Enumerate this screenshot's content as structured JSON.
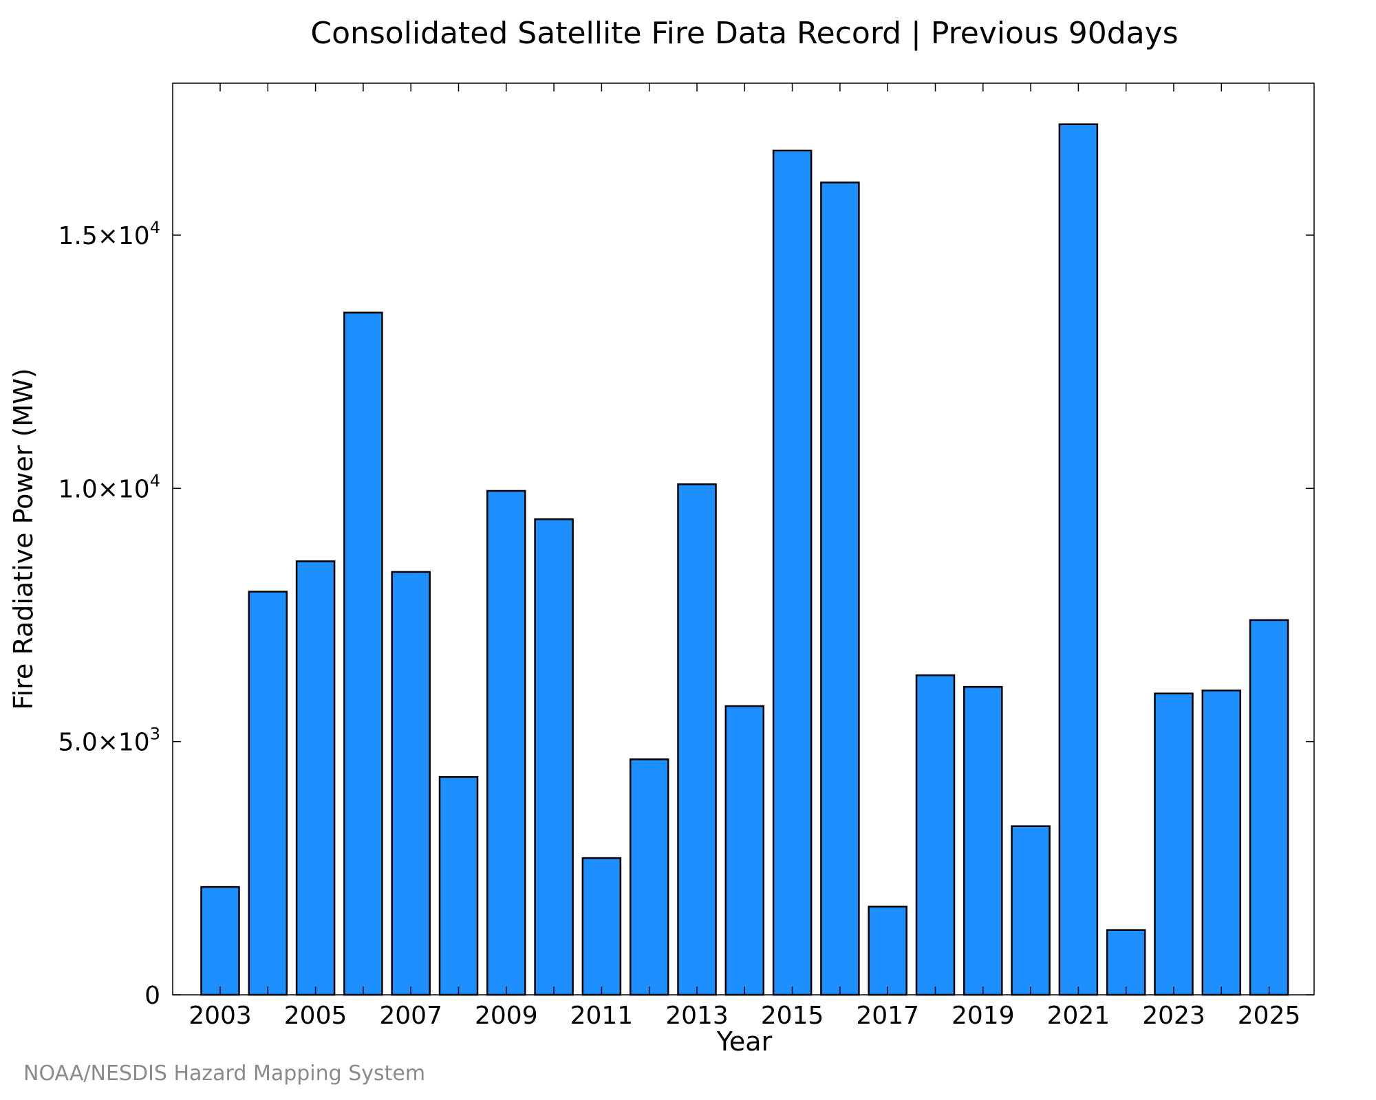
{
  "chart_data": {
    "type": "bar",
    "title": "Consolidated Satellite Fire Data Record | Previous 90days",
    "xlabel": "Year",
    "ylabel": "Fire Radiative Power (MW)",
    "categories": [
      "2003",
      "2004",
      "2005",
      "2006",
      "2007",
      "2008",
      "2009",
      "2010",
      "2011",
      "2012",
      "2013",
      "2014",
      "2015",
      "2016",
      "2017",
      "2018",
      "2019",
      "2020",
      "2021",
      "2022",
      "2023",
      "2024",
      "2025"
    ],
    "x_tick_labels": [
      "2003",
      "2005",
      "2007",
      "2009",
      "2011",
      "2013",
      "2015",
      "2017",
      "2019",
      "2021",
      "2023",
      "2025"
    ],
    "values": [
      2130,
      7960,
      8560,
      13470,
      8350,
      4300,
      9950,
      9390,
      2700,
      4650,
      10080,
      5700,
      16670,
      16040,
      1740,
      6310,
      6080,
      3330,
      17190,
      1280,
      5950,
      6010,
      7400
    ],
    "ylim": [
      0,
      18000
    ],
    "y_ticks": [
      {
        "value": 0,
        "mantissa": "0",
        "exponent": ""
      },
      {
        "value": 5000,
        "mantissa": "5.0×10",
        "exponent": "3"
      },
      {
        "value": 10000,
        "mantissa": "1.0×10",
        "exponent": "4"
      },
      {
        "value": 15000,
        "mantissa": "1.5×10",
        "exponent": "4"
      }
    ],
    "bar_color": "#1e8fff",
    "bar_edge_color": "#000000",
    "grid": false,
    "credit": "NOAA/NESDIS Hazard Mapping System"
  }
}
